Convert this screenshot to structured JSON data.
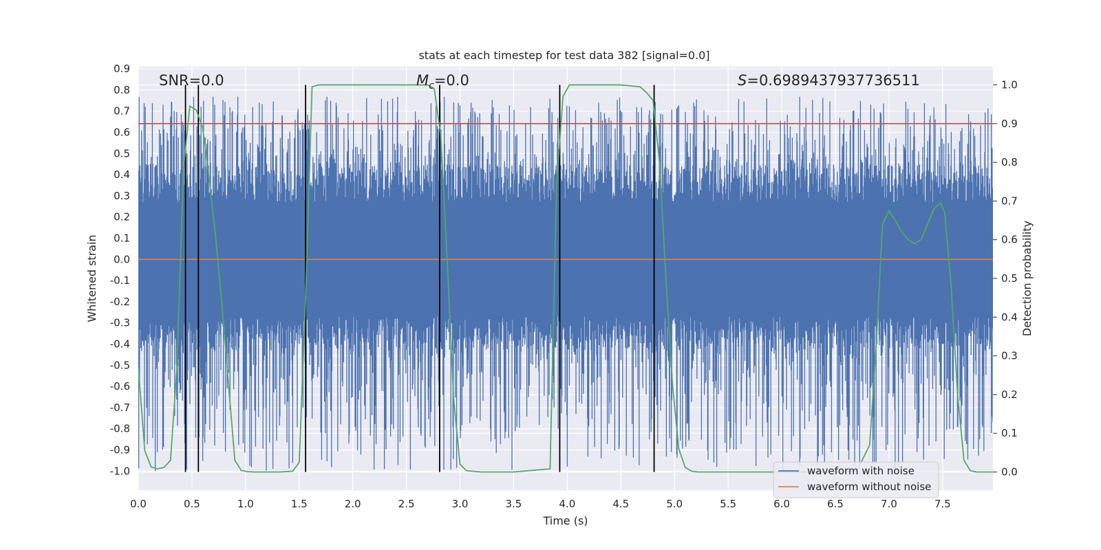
{
  "chart_data": {
    "type": "line",
    "title": "stats at each timestep for test data 382 [signal=0.0]",
    "xlabel": "Time (s)",
    "ylabel_left": "Whitened strain",
    "ylabel_right": "Detection probability",
    "xlim": [
      0.0,
      7.97
    ],
    "ylim_left": [
      -1.09,
      0.91
    ],
    "ylim_right": [
      -0.047,
      1.047
    ],
    "grid": true,
    "x_ticks": [
      "0.0",
      "0.5",
      "1.0",
      "1.5",
      "2.0",
      "2.5",
      "3.0",
      "3.5",
      "4.0",
      "4.5",
      "5.0",
      "5.5",
      "6.0",
      "6.5",
      "7.0",
      "7.5"
    ],
    "y_ticks_left": [
      "0.9",
      "0.8",
      "0.7",
      "0.6",
      "0.5",
      "0.4",
      "0.3",
      "0.2",
      "0.1",
      "0.0",
      "-0.1",
      "-0.2",
      "-0.3",
      "-0.4",
      "-0.5",
      "-0.6",
      "-0.7",
      "-0.8",
      "-0.9",
      "-1.0"
    ],
    "y_ticks_right": [
      "1.0",
      "0.9",
      "0.8",
      "0.7",
      "0.6",
      "0.5",
      "0.4",
      "0.3",
      "0.2",
      "0.1",
      "0.0"
    ],
    "annotations": {
      "snr": "SNR=0.0",
      "mc_symbol": "M",
      "mc_subscript": "c",
      "mc_value": "=0.0",
      "s_symbol": "S",
      "s_value": "=0.6989437937736511"
    },
    "legend": {
      "placement": "lower-right",
      "entries": [
        "waveform with noise",
        "waveform without noise"
      ]
    },
    "colors": {
      "noise": "#4c72b0",
      "clean": "#dd8452",
      "probability": "#55a868",
      "threshold": "#c44e52",
      "markers": "#000000",
      "background": "#eaeaf2",
      "grid": "#ffffff"
    },
    "series": [
      {
        "name": "waveform with noise",
        "axis": "left",
        "kind": "noise-band",
        "core_range": [
          -0.27,
          0.27
        ],
        "peak_range": [
          -1.0,
          0.77
        ]
      },
      {
        "name": "waveform without noise",
        "axis": "left",
        "x": [
          0.0,
          7.97
        ],
        "y": [
          0.0,
          0.0
        ]
      },
      {
        "name": "detection probability",
        "axis": "right",
        "x": [
          0.0,
          0.06,
          0.12,
          0.18,
          0.24,
          0.3,
          0.36,
          0.42,
          0.48,
          0.54,
          0.6,
          0.66,
          0.72,
          0.78,
          0.84,
          0.9,
          0.96,
          1.02,
          1.08,
          1.2,
          1.32,
          1.44,
          1.5,
          1.56,
          1.62,
          1.68,
          1.8,
          2.4,
          2.7,
          2.76,
          2.82,
          2.88,
          2.94,
          3.0,
          3.06,
          3.2,
          3.5,
          3.84,
          3.9,
          3.96,
          4.02,
          4.1,
          4.5,
          4.68,
          4.74,
          4.8,
          4.86,
          4.92,
          4.98,
          5.04,
          5.1,
          5.16,
          5.22,
          5.3,
          5.6,
          6.0,
          6.5,
          6.7,
          6.82,
          6.88,
          6.94,
          7.0,
          7.06,
          7.12,
          7.18,
          7.24,
          7.3,
          7.36,
          7.42,
          7.48,
          7.52,
          7.58,
          7.64,
          7.7,
          7.76,
          7.82,
          7.88,
          7.97
        ],
        "y": [
          0.27,
          0.055,
          0.013,
          0.008,
          0.012,
          0.03,
          0.27,
          0.78,
          0.945,
          0.935,
          0.89,
          0.76,
          0.61,
          0.43,
          0.23,
          0.03,
          0.004,
          0.001,
          0.0,
          0.0,
          0.0,
          0.002,
          0.025,
          0.45,
          0.995,
          1.0,
          1.0,
          1.0,
          1.0,
          0.99,
          0.87,
          0.55,
          0.19,
          0.02,
          0.003,
          0.0,
          0.0,
          0.008,
          0.74,
          0.97,
          1.0,
          1.0,
          1.0,
          0.995,
          0.98,
          0.96,
          0.8,
          0.5,
          0.23,
          0.06,
          0.012,
          0.002,
          0.0,
          0.0,
          0.0,
          0.0,
          0.0,
          0.002,
          0.07,
          0.32,
          0.64,
          0.675,
          0.65,
          0.62,
          0.6,
          0.59,
          0.6,
          0.64,
          0.68,
          0.695,
          0.67,
          0.48,
          0.2,
          0.03,
          0.003,
          0.0,
          0.0,
          0.0
        ]
      },
      {
        "name": "detection threshold",
        "axis": "right",
        "x": [
          0.0,
          7.97
        ],
        "y": [
          0.9,
          0.9
        ]
      }
    ],
    "event_markers_x": [
      0.44,
      0.56,
      1.56,
      2.81,
      3.93,
      4.81
    ]
  }
}
